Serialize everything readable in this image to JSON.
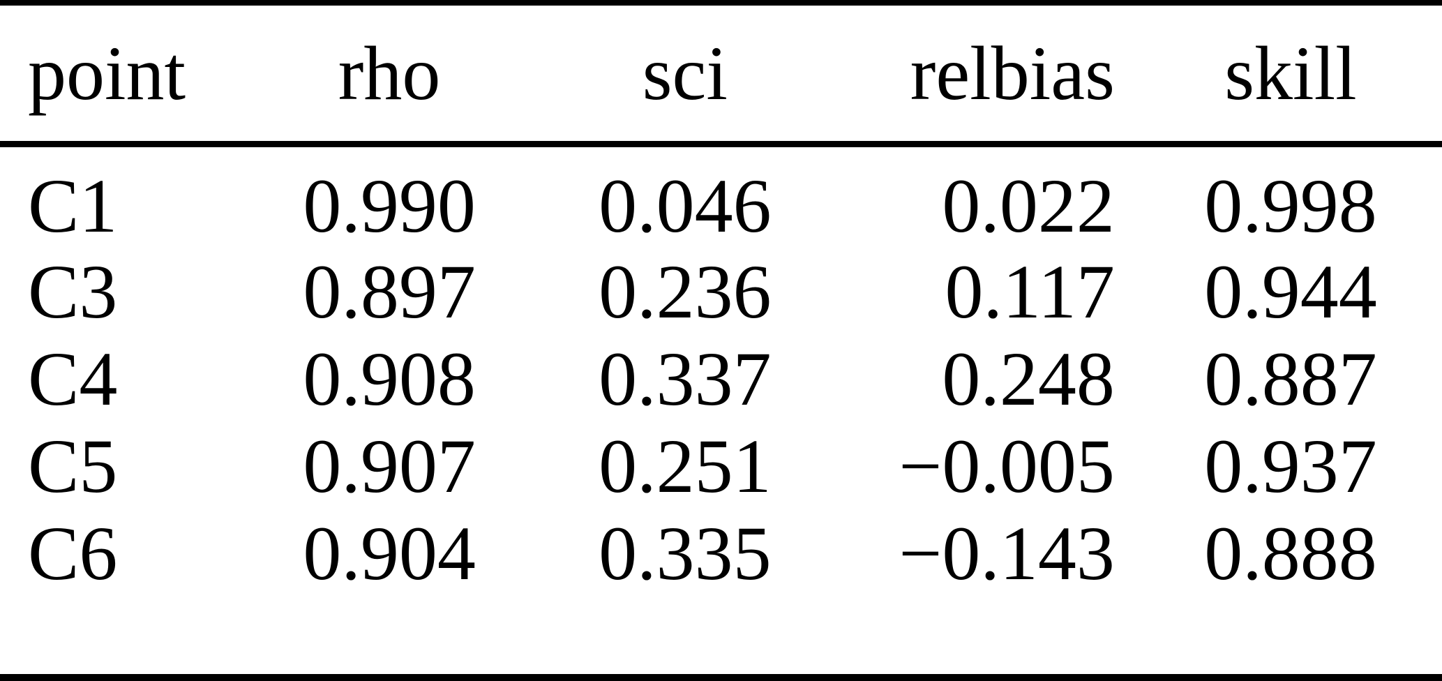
{
  "figure": {
    "type": "table",
    "columns": [
      "point",
      "rho",
      "sci",
      "relbias",
      "skill"
    ],
    "rows": [
      [
        "C1",
        "0.990",
        "0.046",
        "0.022",
        "0.998"
      ],
      [
        "C3",
        "0.897",
        "0.236",
        "0.117",
        "0.944"
      ],
      [
        "C4",
        "0.908",
        "0.337",
        "0.248",
        "0.887"
      ],
      [
        "C5",
        "0.907",
        "0.251",
        "−0.005",
        "0.937"
      ],
      [
        "C6",
        "0.904",
        "0.335",
        "−0.143",
        "0.888"
      ]
    ],
    "colors": {
      "text": "#000000",
      "background": "#ffffff",
      "rule": "#000000"
    }
  }
}
